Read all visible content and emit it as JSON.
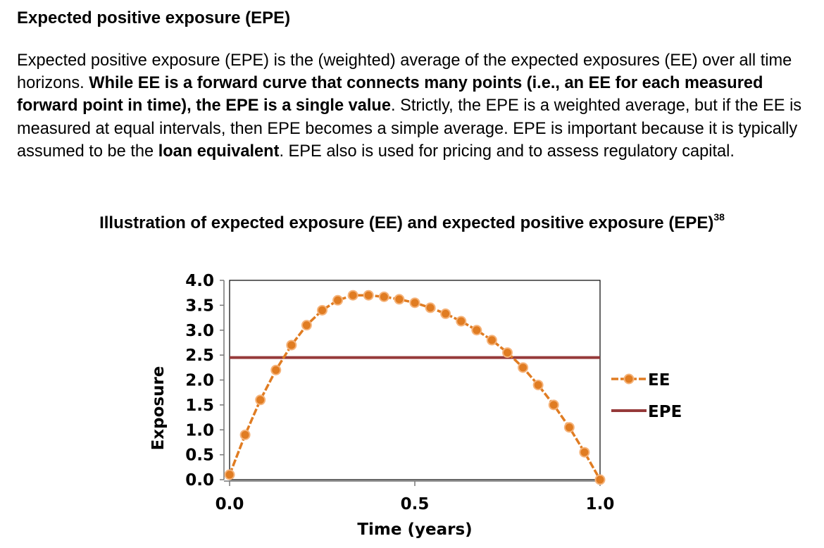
{
  "document": {
    "heading": "Expected positive exposure (EPE)",
    "paragraph": [
      {
        "text": "Expected positive exposure (EPE) is the (weighted) average of the expected exposures (EE) over all time horizons. ",
        "bold": false
      },
      {
        "text": "While EE is a forward curve that connects many points (i.e., an EE for each measured forward point in time), the EPE is a single value",
        "bold": true
      },
      {
        "text": ". Strictly, the EPE is a weighted average, but if the EE is measured at equal intervals, then EPE becomes a simple average. EPE is important because it is typically assumed to be the ",
        "bold": false
      },
      {
        "text": "loan equivalent",
        "bold": true
      },
      {
        "text": ". EPE also is used for pricing and to assess regulatory capital.",
        "bold": false
      }
    ],
    "figure_title": "Illustration of expected exposure (EE) and expected positive exposure (EPE)",
    "figure_footnote": "38"
  },
  "colors": {
    "ee": "#E07C22",
    "ee_marker_edge": "#F5B37A",
    "epe": "#963A3A"
  },
  "chart_data": {
    "type": "line",
    "title": "",
    "xlabel": "Time (years)",
    "ylabel": "Exposure",
    "xlim": [
      0.0,
      1.0
    ],
    "ylim": [
      0.0,
      4.0
    ],
    "xticks": [
      "0.0",
      "0.5",
      "1.0"
    ],
    "xtick_values": [
      0.0,
      0.5,
      1.0
    ],
    "yticks": [
      "0.0",
      "0.5",
      "1.0",
      "1.5",
      "2.0",
      "2.5",
      "3.0",
      "3.5",
      "4.0"
    ],
    "ytick_values": [
      0.0,
      0.5,
      1.0,
      1.5,
      2.0,
      2.5,
      3.0,
      3.5,
      4.0
    ],
    "legend_position": "right",
    "series": [
      {
        "name": "EE",
        "style": "line-with-markers",
        "x": [
          0.0,
          0.042,
          0.083,
          0.125,
          0.167,
          0.208,
          0.25,
          0.292,
          0.333,
          0.375,
          0.417,
          0.458,
          0.5,
          0.542,
          0.583,
          0.625,
          0.667,
          0.708,
          0.75,
          0.792,
          0.833,
          0.875,
          0.917,
          0.958,
          1.0
        ],
        "y": [
          0.1,
          0.9,
          1.6,
          2.2,
          2.7,
          3.1,
          3.4,
          3.6,
          3.7,
          3.7,
          3.67,
          3.62,
          3.55,
          3.45,
          3.33,
          3.18,
          3.0,
          2.8,
          2.55,
          2.25,
          1.9,
          1.5,
          1.05,
          0.55,
          0.0
        ]
      },
      {
        "name": "EPE",
        "style": "flat-line",
        "x": [
          0.0,
          1.0
        ],
        "y": [
          2.45,
          2.45
        ]
      }
    ]
  }
}
